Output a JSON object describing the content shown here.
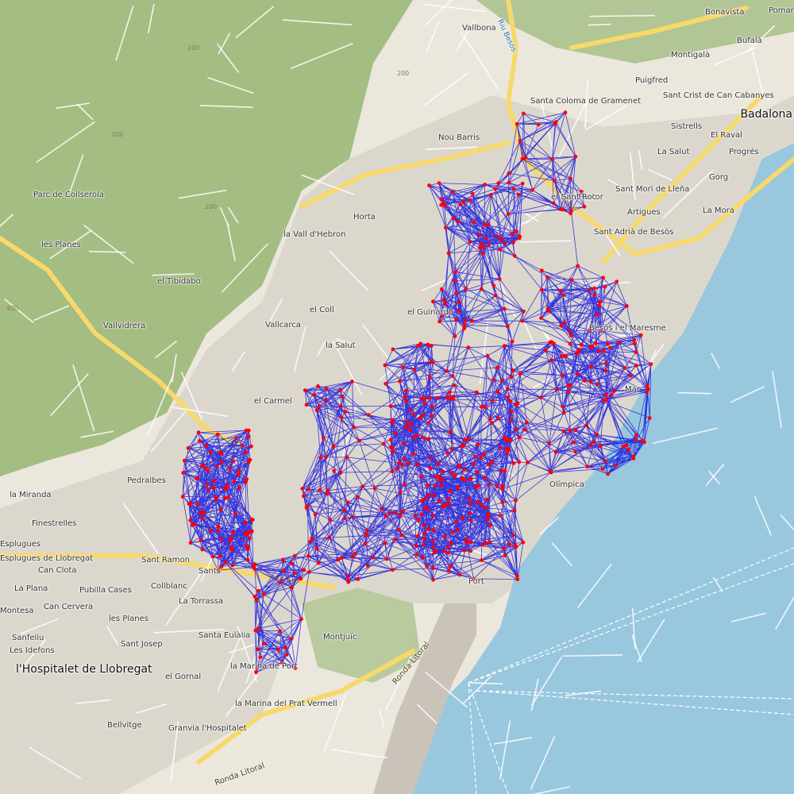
{
  "map": {
    "colors": {
      "sea": "#99c7de",
      "land": "#ece7dd",
      "park": "#a4bd83",
      "urban": "#dcd7cd",
      "motorway": "#f7d96b",
      "network_edge": "#0000e0",
      "network_node": "#ff0000"
    },
    "labels": [
      {
        "text": "Bonavista",
        "kind": "place"
      },
      {
        "text": "Pomar",
        "kind": "place"
      },
      {
        "text": "Vallbona",
        "kind": "place"
      },
      {
        "text": "Riu Besòs",
        "kind": "river"
      },
      {
        "text": "Bufalà",
        "kind": "place"
      },
      {
        "text": "Montigalà",
        "kind": "place"
      },
      {
        "text": "Puigfred",
        "kind": "place"
      },
      {
        "text": "Santa Coloma de Gramenet",
        "kind": "place"
      },
      {
        "text": "Sant Crist de Can Cabanyes",
        "kind": "place"
      },
      {
        "text": "Badalona",
        "kind": "city"
      },
      {
        "text": "Sistrells",
        "kind": "place"
      },
      {
        "text": "El Raval",
        "kind": "place"
      },
      {
        "text": "Nou Barris",
        "kind": "place"
      },
      {
        "text": "Progrés",
        "kind": "place"
      },
      {
        "text": "La Salut",
        "kind": "place"
      },
      {
        "text": "Gorg",
        "kind": "place"
      },
      {
        "text": "el Bon Pastor",
        "kind": "place"
      },
      {
        "text": "Sant Roc",
        "kind": "place"
      },
      {
        "text": "Sant Mori de Lleña",
        "kind": "place"
      },
      {
        "text": "Artigues",
        "kind": "place"
      },
      {
        "text": "La Mora",
        "kind": "place"
      },
      {
        "text": "Sant Adrià de Besòs",
        "kind": "place"
      },
      {
        "text": "Horta",
        "kind": "place"
      },
      {
        "text": "la Vall d'Hebron",
        "kind": "place"
      },
      {
        "text": "Parc de Collserola",
        "kind": "place"
      },
      {
        "text": "les Planes",
        "kind": "place"
      },
      {
        "text": "el Tibidabo",
        "kind": "place"
      },
      {
        "text": "el Coll",
        "kind": "place"
      },
      {
        "text": "el Guinardó",
        "kind": "place"
      },
      {
        "text": "Vallvidrera",
        "kind": "place"
      },
      {
        "text": "Vallcarca",
        "kind": "place"
      },
      {
        "text": "la Salut",
        "kind": "place"
      },
      {
        "text": "Besòs i el Maresme",
        "kind": "place"
      },
      {
        "text": "el Carmel",
        "kind": "place"
      },
      {
        "text": "Mar",
        "kind": "place"
      },
      {
        "text": "Pedralbes",
        "kind": "place"
      },
      {
        "text": "la Miranda",
        "kind": "place"
      },
      {
        "text": "Finestrelles",
        "kind": "place"
      },
      {
        "text": "Esplugues de Llobregat",
        "kind": "place"
      },
      {
        "text": "Can Clota",
        "kind": "place"
      },
      {
        "text": "La Plana",
        "kind": "place"
      },
      {
        "text": "Pubilla Cases",
        "kind": "place"
      },
      {
        "text": "Collblanc",
        "kind": "place"
      },
      {
        "text": "Can Cervera",
        "kind": "place"
      },
      {
        "text": "La Torrassa",
        "kind": "place"
      },
      {
        "text": "les Planes",
        "kind": "place"
      },
      {
        "text": "Sant Josep",
        "kind": "place"
      },
      {
        "text": "Sanfeliu",
        "kind": "place"
      },
      {
        "text": "Santa Eulàlia",
        "kind": "place"
      },
      {
        "text": "l'Hospitalet de Llobregat",
        "kind": "city"
      },
      {
        "text": "el Gornal",
        "kind": "place"
      },
      {
        "text": "Montjuïc",
        "kind": "place"
      },
      {
        "text": "la Marina de Port",
        "kind": "place"
      },
      {
        "text": "la Marina del Prat Vermell",
        "kind": "place"
      },
      {
        "text": "Bellvitge",
        "kind": "place"
      },
      {
        "text": "Granvia l'Hospitalet",
        "kind": "place"
      },
      {
        "text": "Ronda Litoral",
        "kind": "road"
      },
      {
        "text": "Ronda Litoral",
        "kind": "road"
      },
      {
        "text": "Sant Ramon",
        "kind": "place"
      },
      {
        "text": "Sants",
        "kind": "place"
      },
      {
        "text": "Port",
        "kind": "place"
      },
      {
        "text": "Olímpica",
        "kind": "place"
      },
      {
        "text": "Esplugues",
        "kind": "place"
      },
      {
        "text": "Montesa",
        "kind": "place"
      },
      {
        "text": "Les Idefons",
        "kind": "place"
      },
      {
        "text": "200",
        "kind": "contour"
      },
      {
        "text": "200",
        "kind": "contour"
      },
      {
        "text": "200",
        "kind": "contour"
      },
      {
        "text": "200",
        "kind": "contour"
      },
      {
        "text": "400",
        "kind": "contour"
      }
    ]
  }
}
